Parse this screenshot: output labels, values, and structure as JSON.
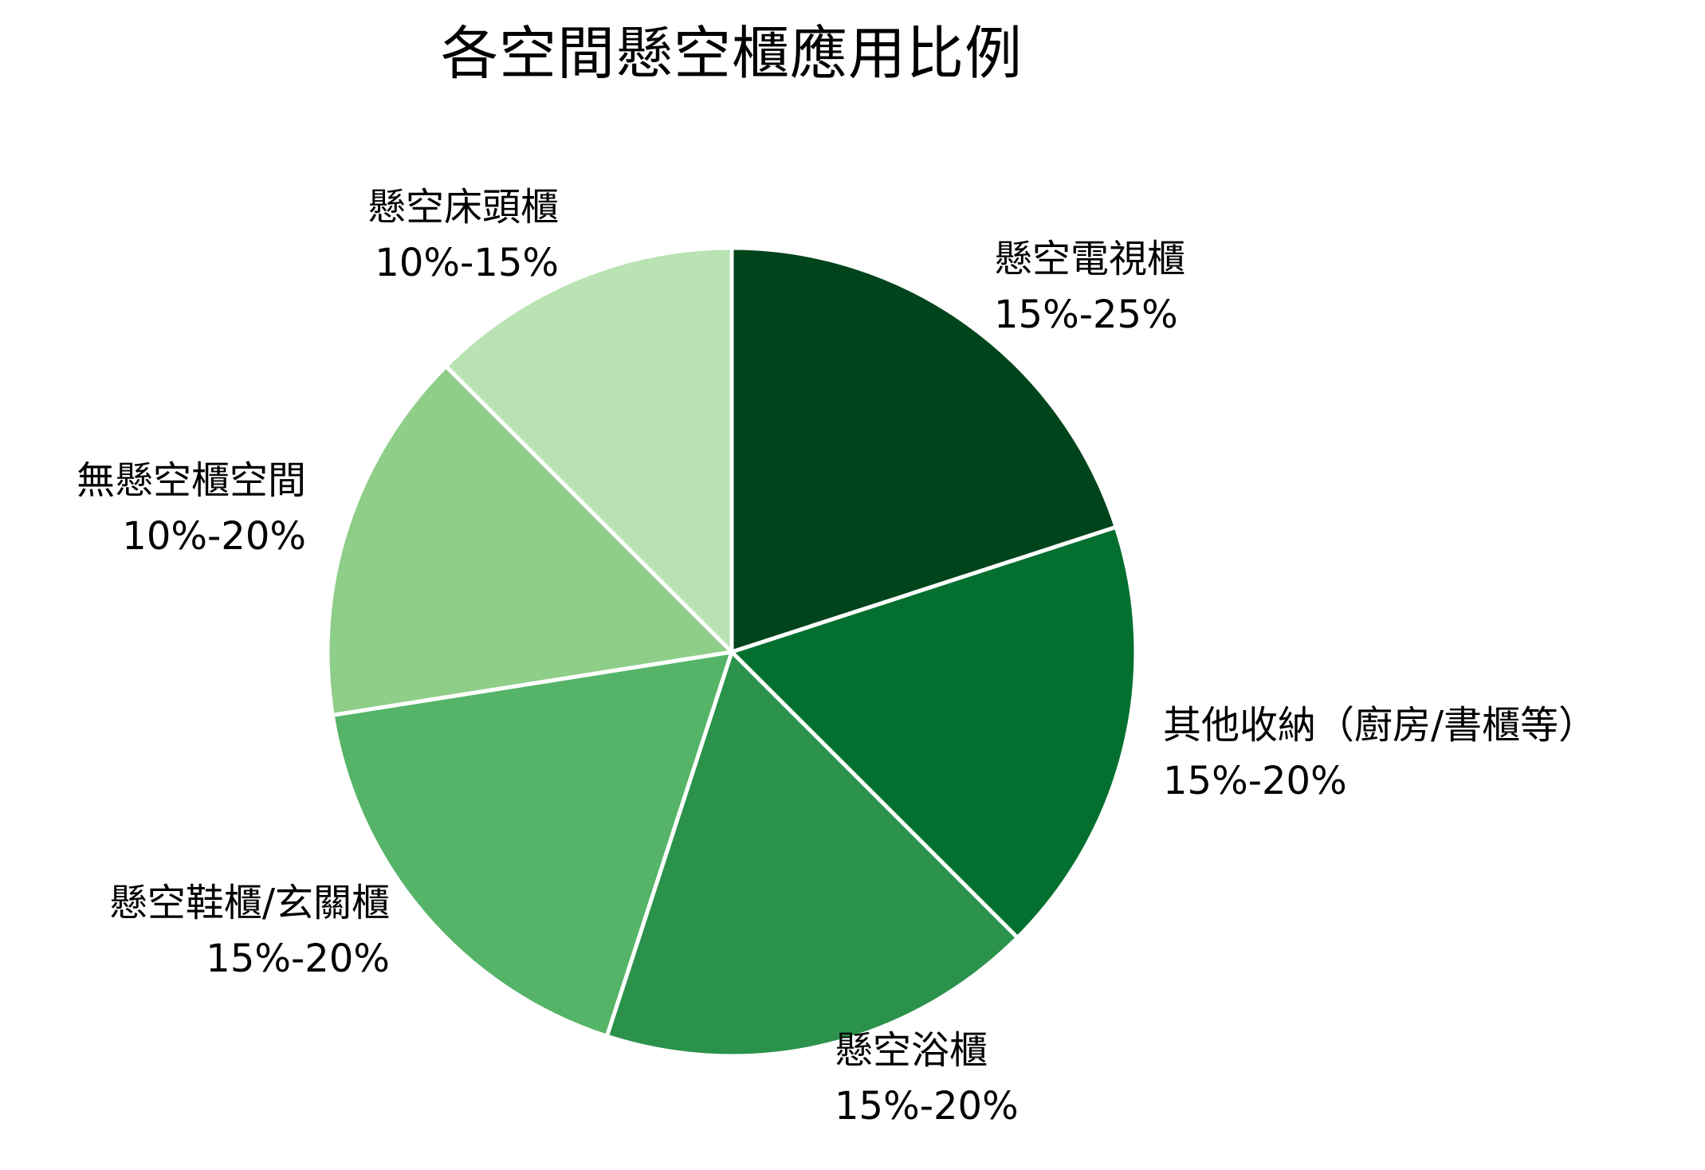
{
  "title": "各空間懸空櫃應用比例",
  "chart_data": {
    "type": "pie",
    "title": "各空間懸空櫃應用比例",
    "start_angle_deg": -90,
    "direction": "clockwise",
    "legend": "none (direct labels)",
    "slices": [
      {
        "label": "懸空電視櫃",
        "range": "15%-25%",
        "value": 20.0,
        "color": "#00441b"
      },
      {
        "label": "其他收納（廚房/書櫃等）",
        "range": "15%-20%",
        "value": 17.5,
        "color": "#04702f"
      },
      {
        "label": "懸空浴櫃",
        "range": "15%-20%",
        "value": 17.5,
        "color": "#2b924c"
      },
      {
        "label": "懸空鞋櫃/玄關櫃",
        "range": "15%-20%",
        "value": 17.5,
        "color": "#55b467"
      },
      {
        "label": "無懸空櫃空間",
        "range": "10%-20%",
        "value": 15.0,
        "color": "#8ece88"
      },
      {
        "label": "懸空床頭櫃",
        "range": "10%-15%",
        "value": 12.5,
        "color": "#b9e3b2"
      }
    ],
    "categories": [
      "懸空電視櫃",
      "其他收納（廚房/書櫃等）",
      "懸空浴櫃",
      "懸空鞋櫃/玄關櫃",
      "無懸空櫃空間",
      "懸空床頭櫃"
    ],
    "values": [
      20.0,
      17.5,
      17.5,
      17.5,
      15.0,
      12.5
    ],
    "value_labels": [
      "15%-25%",
      "15%-20%",
      "15%-20%",
      "15%-20%",
      "10%-20%",
      "10%-15%"
    ]
  },
  "labels": {
    "tv": {
      "name": "懸空電視櫃",
      "range": "15%-25%"
    },
    "other": {
      "name": "其他收納（廚房/書櫃等）",
      "range": "15%-20%"
    },
    "bath": {
      "name": "懸空浴櫃",
      "range": "15%-20%"
    },
    "shoe": {
      "name": "懸空鞋櫃/玄關櫃",
      "range": "15%-20%"
    },
    "none": {
      "name": "無懸空櫃空間",
      "range": "10%-20%"
    },
    "bedside": {
      "name": "懸空床頭櫃",
      "range": "10%-15%"
    }
  },
  "style": {
    "separator_color": "#ffffff",
    "text_color": "#000000",
    "background": "#ffffff"
  }
}
